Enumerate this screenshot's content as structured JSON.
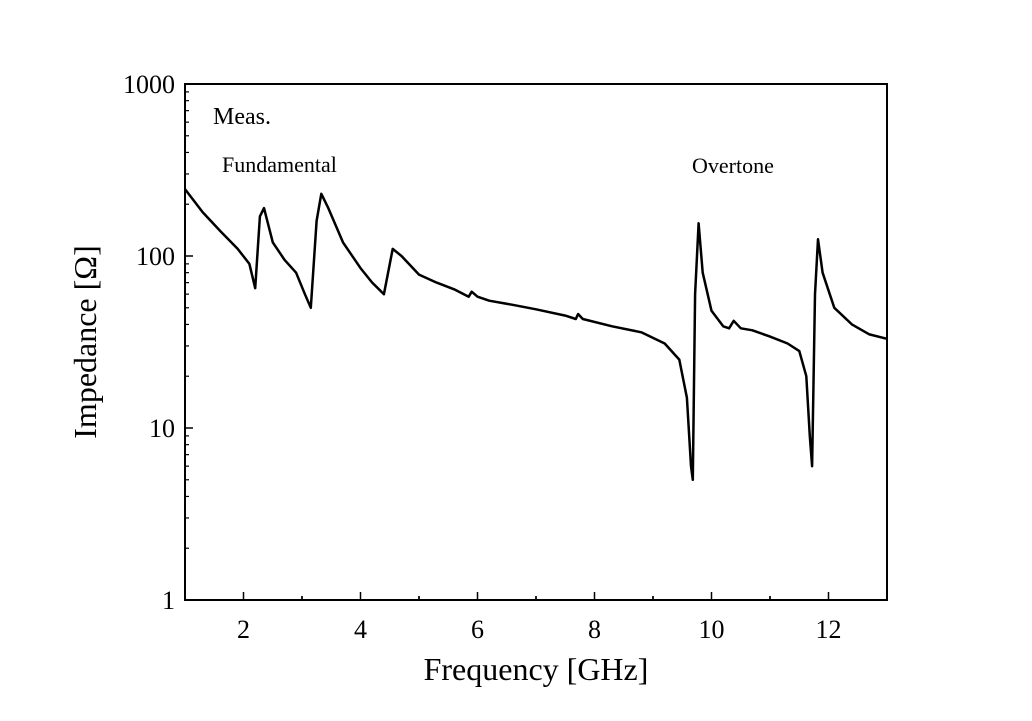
{
  "chart_data": {
    "type": "line",
    "title": "",
    "xlabel": "Frequency [GHz]",
    "ylabel": "Impedance [Ω]",
    "xlim": [
      1,
      13
    ],
    "ylim": [
      1,
      1000
    ],
    "y_scale": "log",
    "grid": false,
    "x_ticks": [
      2,
      4,
      6,
      8,
      10,
      12
    ],
    "x_tick_labels": [
      "2",
      "4",
      "6",
      "8",
      "10",
      "12"
    ],
    "y_ticks": [
      1,
      10,
      100,
      1000
    ],
    "y_tick_labels": [
      "1",
      "10",
      "100",
      "1000"
    ],
    "annotations": {
      "meas": "Meas.",
      "fundamental": "Fundamental",
      "overtone": "Overtone"
    },
    "series": [
      {
        "color": "#000000",
        "x": [
          1.0,
          1.3,
          1.6,
          1.9,
          2.1,
          2.2,
          2.28,
          2.35,
          2.5,
          2.7,
          2.9,
          3.05,
          3.15,
          3.25,
          3.33,
          3.45,
          3.7,
          4.0,
          4.2,
          4.4,
          4.55,
          4.7,
          5.0,
          5.3,
          5.6,
          5.85,
          5.9,
          6.0,
          6.2,
          6.6,
          7.0,
          7.5,
          7.68,
          7.72,
          7.8,
          8.3,
          8.8,
          9.2,
          9.45,
          9.58,
          9.65,
          9.68,
          9.72,
          9.78,
          9.85,
          10.0,
          10.2,
          10.3,
          10.38,
          10.5,
          10.7,
          11.0,
          11.3,
          11.5,
          11.62,
          11.68,
          11.72,
          11.77,
          11.82,
          11.9,
          12.1,
          12.4,
          12.7,
          13.0
        ],
        "y": [
          245,
          180,
          140,
          110,
          90,
          65,
          170,
          190,
          120,
          95,
          80,
          60,
          50,
          160,
          230,
          190,
          120,
          85,
          70,
          60,
          110,
          100,
          78,
          70,
          64,
          58,
          62,
          58,
          55,
          52,
          49,
          45,
          43,
          46,
          43,
          39,
          36,
          31,
          25,
          15,
          6,
          5,
          60,
          155,
          80,
          48,
          39,
          38,
          42,
          38,
          37,
          34,
          31,
          28,
          20,
          9,
          6,
          60,
          125,
          80,
          50,
          40,
          35,
          33
        ]
      }
    ]
  }
}
